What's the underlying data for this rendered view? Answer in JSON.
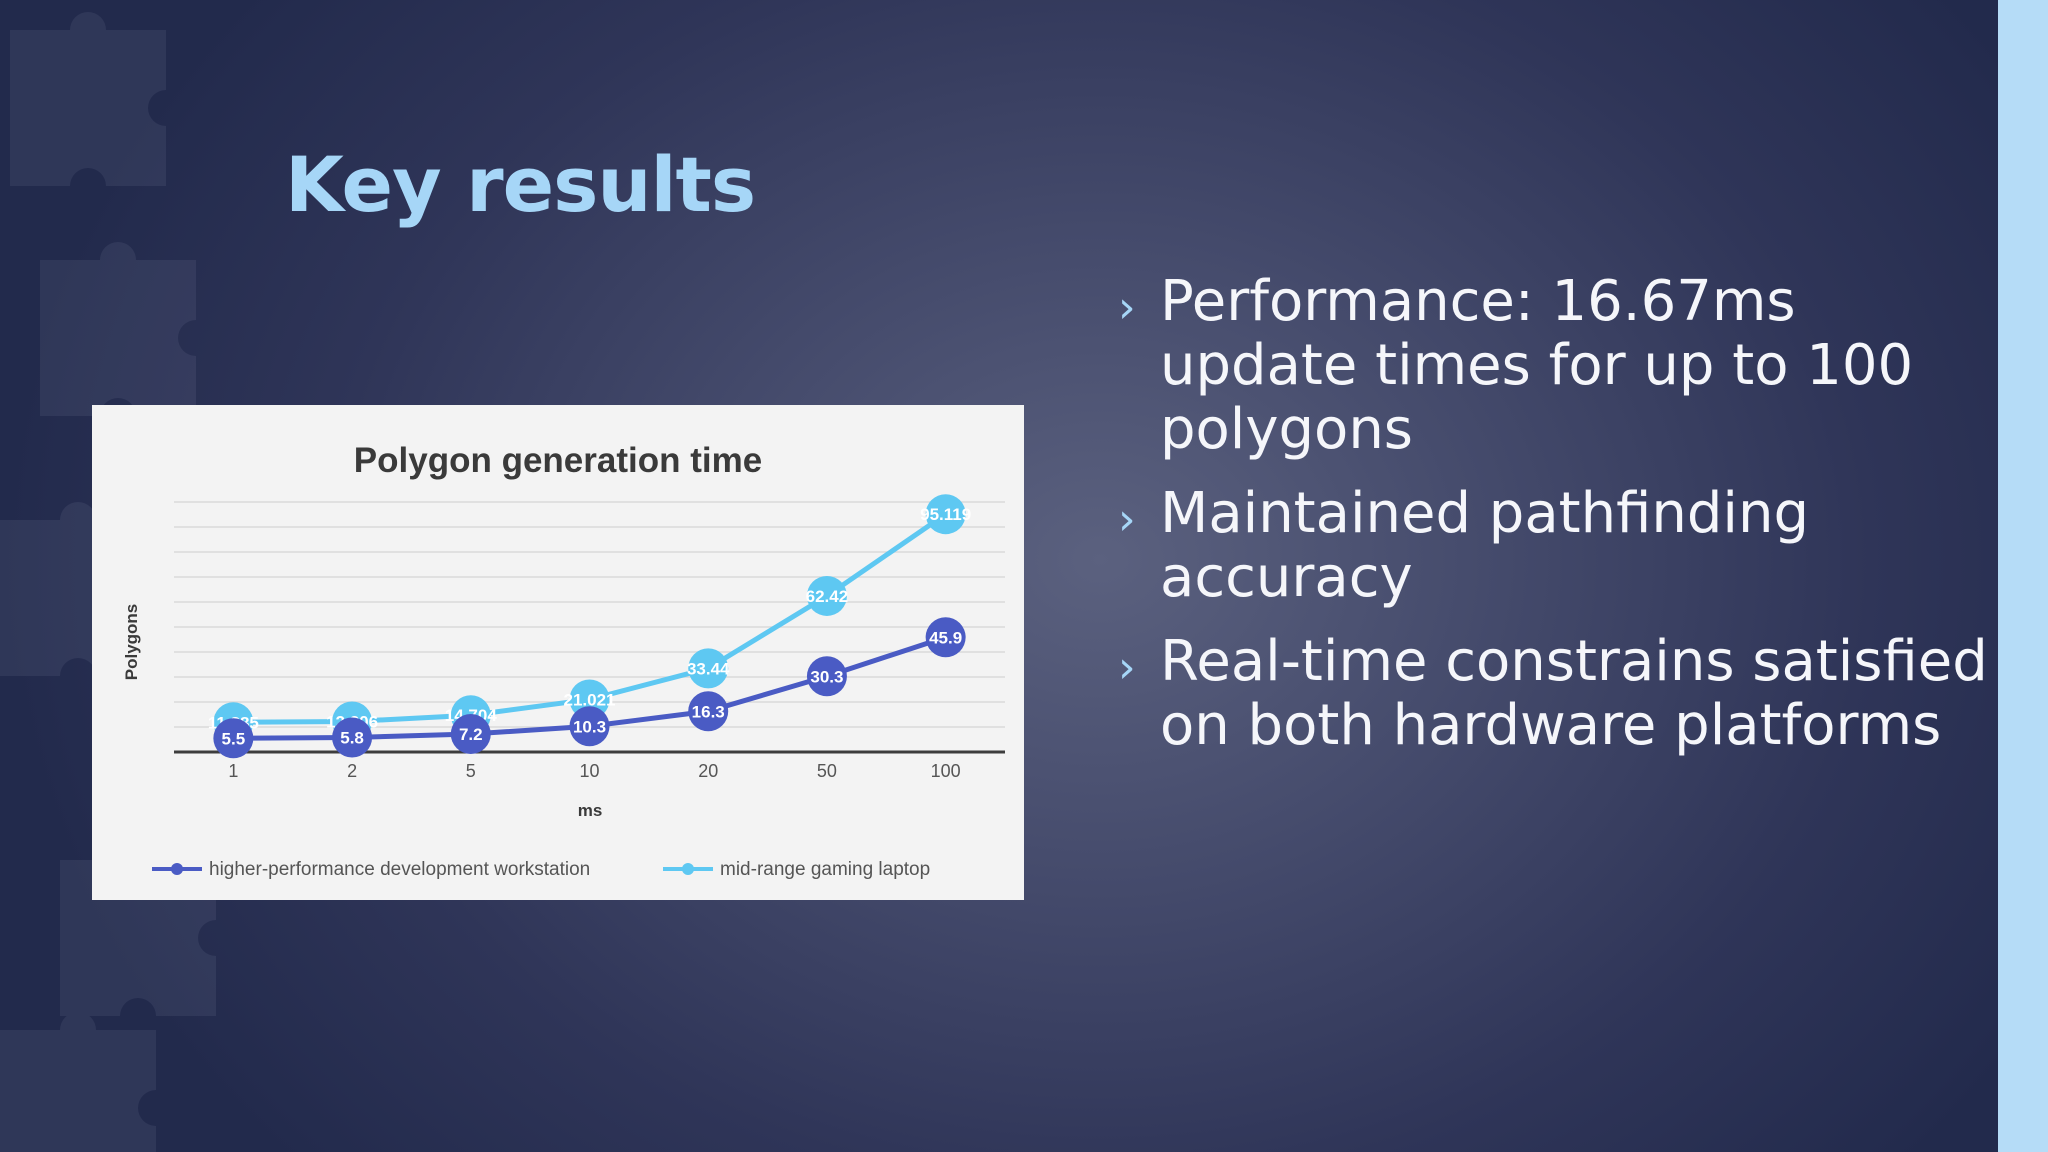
{
  "slide": {
    "title": "Key results",
    "bullets": [
      "Performance: 16.67ms update times for up to 100 polygons",
      "Maintained pathfinding accuracy",
      "Real-time constrains satisfied on both hardware platforms"
    ]
  },
  "colors": {
    "title": "#a6d6f7",
    "accent_bar": "#b5dcf7",
    "series_workstation": "#4a5bc4",
    "series_laptop": "#5ec8f2"
  },
  "chart_data": {
    "type": "line",
    "title": "Polygon generation time",
    "xlabel": "ms",
    "ylabel": "Polygons",
    "categories": [
      "1",
      "2",
      "5",
      "10",
      "20",
      "50",
      "100"
    ],
    "ylim": [
      0,
      100
    ],
    "grid": true,
    "legend_position": "bottom",
    "series": [
      {
        "name": "higher-performance development workstation",
        "values": [
          5.5,
          5.8,
          7.2,
          10.3,
          16.3,
          30.3,
          45.9
        ],
        "labels": [
          "5.5",
          "5.8",
          "7.2",
          "10.3",
          "16.3",
          "30.3",
          "45.9"
        ]
      },
      {
        "name": "mid-range gaming laptop",
        "values": [
          11.885,
          12.206,
          14.704,
          21.021,
          33.44,
          62.42,
          95.119
        ],
        "labels": [
          "11.885",
          "12.206",
          "14.704",
          "21.021",
          "33.44",
          "62.42",
          "95.119"
        ]
      }
    ]
  }
}
